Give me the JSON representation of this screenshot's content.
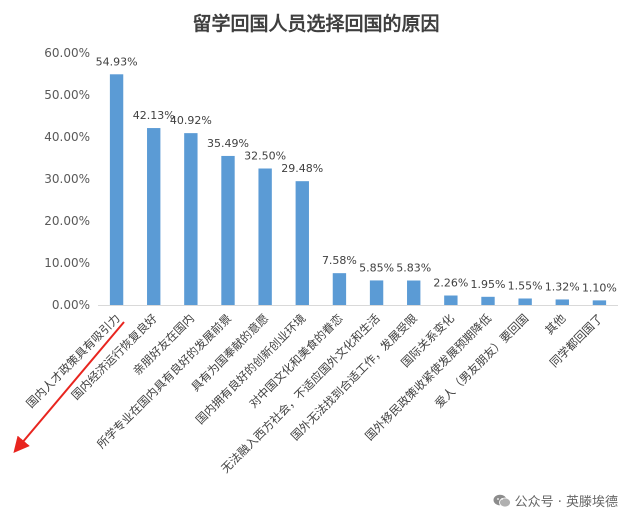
{
  "chart_data": {
    "type": "bar",
    "title": "留学回国人员选择回国的原因",
    "categories": [
      "国内人才政策具有吸引力",
      "国内经济运行恢复良好",
      "亲朋好友在国内",
      "所学专业在国内具有良好的发展前景",
      "具有为国奉献的意愿",
      "国内拥有良好的创新创业环境",
      "对中国文化和美食的眷恋",
      "无法融入西方社会，不适应国外文化和生活",
      "国外无法找到合适工作，发展受限",
      "国际关系变化",
      "国外移民政策收紧使发展预期降低",
      "爱人（男友朋友）要回国",
      "其他",
      "同学都回国了"
    ],
    "values": [
      54.93,
      42.13,
      40.92,
      35.49,
      32.5,
      29.48,
      7.58,
      5.85,
      5.83,
      2.26,
      1.95,
      1.55,
      1.32,
      1.1
    ],
    "data_labels": [
      "54.93%",
      "42.13%",
      "40.92%",
      "35.49%",
      "32.50%",
      "29.48%",
      "7.58%",
      "5.85%",
      "5.83%",
      "2.26%",
      "1.95%",
      "1.55%",
      "1.32%",
      "1.10%"
    ],
    "y_ticks": [
      "0.00%",
      "10.00%",
      "20.00%",
      "30.00%",
      "40.00%",
      "50.00%",
      "60.00%"
    ],
    "ylim": [
      0,
      60
    ],
    "grid": false,
    "legend": "none",
    "bar_color": "#5b9bd5",
    "arrow_color": "#e8251f"
  },
  "watermark": {
    "text": "公众号 · 英滕埃德",
    "icon": "wechat-icon"
  }
}
